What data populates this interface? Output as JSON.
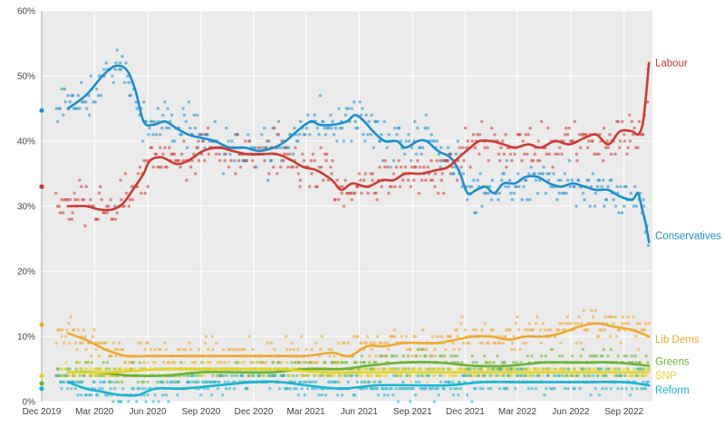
{
  "chart_data": {
    "type": "scatter",
    "title": "",
    "xlabel": "",
    "ylabel": "",
    "x_domain": [
      "2019-12-01",
      "2022-10-20"
    ],
    "ylim": [
      0,
      60
    ],
    "grid": true,
    "legend": "direct labels at right end of lines",
    "x_ticks": [
      {
        "date": "2019-12-01",
        "label": "Dec 2019"
      },
      {
        "date": "2020-03-01",
        "label": "Mar 2020"
      },
      {
        "date": "2020-06-01",
        "label": "Jun 2020"
      },
      {
        "date": "2020-09-01",
        "label": "Sep 2020"
      },
      {
        "date": "2020-12-01",
        "label": "Dec 2020"
      },
      {
        "date": "2021-03-01",
        "label": "Mar 2021"
      },
      {
        "date": "2021-06-01",
        "label": "Jun 2021"
      },
      {
        "date": "2021-09-01",
        "label": "Sep 2021"
      },
      {
        "date": "2021-12-01",
        "label": "Dec 2021"
      },
      {
        "date": "2022-03-01",
        "label": "Mar 2022"
      },
      {
        "date": "2022-06-01",
        "label": "Jun 2022"
      },
      {
        "date": "2022-09-01",
        "label": "Sep 2022"
      }
    ],
    "y_ticks": [
      {
        "value": 0,
        "label": "0%"
      },
      {
        "value": 10,
        "label": "10%"
      },
      {
        "value": 20,
        "label": "20%"
      },
      {
        "value": 30,
        "label": "30%"
      },
      {
        "value": 40,
        "label": "40%"
      },
      {
        "value": 50,
        "label": "50%"
      },
      {
        "value": 60,
        "label": "60%"
      }
    ],
    "series": [
      {
        "name": "Conservatives",
        "color": "#1a8fd0",
        "election_result": 44.7,
        "spread": 2.2,
        "label_at": 25.5,
        "trend": [
          [
            "2020-01-15",
            45
          ],
          [
            "2020-02-15",
            47
          ],
          [
            "2020-03-15",
            50
          ],
          [
            "2020-04-05",
            51.5
          ],
          [
            "2020-04-25",
            51
          ],
          [
            "2020-05-10",
            48
          ],
          [
            "2020-05-25",
            43
          ],
          [
            "2020-06-10",
            42.5
          ],
          [
            "2020-07-01",
            43
          ],
          [
            "2020-07-20",
            42
          ],
          [
            "2020-08-10",
            41
          ],
          [
            "2020-09-01",
            40.5
          ],
          [
            "2020-09-25",
            40
          ],
          [
            "2020-10-20",
            39
          ],
          [
            "2020-11-15",
            39
          ],
          [
            "2020-12-10",
            38.5
          ],
          [
            "2021-01-05",
            39
          ],
          [
            "2021-01-25",
            40
          ],
          [
            "2021-02-20",
            42
          ],
          [
            "2021-03-10",
            43
          ],
          [
            "2021-03-25",
            42.5
          ],
          [
            "2021-04-15",
            42.5
          ],
          [
            "2021-05-10",
            43
          ],
          [
            "2021-05-25",
            44
          ],
          [
            "2021-06-10",
            43
          ],
          [
            "2021-06-25",
            41.5
          ],
          [
            "2021-07-15",
            40
          ],
          [
            "2021-08-05",
            40
          ],
          [
            "2021-08-20",
            39
          ],
          [
            "2021-09-10",
            40
          ],
          [
            "2021-09-25",
            40
          ],
          [
            "2021-10-15",
            38.5
          ],
          [
            "2021-11-05",
            37.5
          ],
          [
            "2021-11-20",
            35.5
          ],
          [
            "2021-12-05",
            32
          ],
          [
            "2021-12-20",
            32.5
          ],
          [
            "2022-01-05",
            33
          ],
          [
            "2022-01-20",
            32
          ],
          [
            "2022-02-05",
            33.5
          ],
          [
            "2022-02-25",
            33.5
          ],
          [
            "2022-03-15",
            34.5
          ],
          [
            "2022-04-05",
            34.5
          ],
          [
            "2022-04-25",
            33.5
          ],
          [
            "2022-05-15",
            33
          ],
          [
            "2022-06-05",
            33.5
          ],
          [
            "2022-06-25",
            33
          ],
          [
            "2022-07-15",
            32.5
          ],
          [
            "2022-08-05",
            32.5
          ],
          [
            "2022-08-25",
            31.5
          ],
          [
            "2022-09-15",
            31
          ],
          [
            "2022-09-25",
            32
          ],
          [
            "2022-10-01",
            30
          ],
          [
            "2022-10-08",
            27.5
          ],
          [
            "2022-10-14",
            24.5
          ]
        ]
      },
      {
        "name": "Labour",
        "color": "#d03a34",
        "election_result": 33,
        "spread": 2.2,
        "label_at": 52,
        "trend": [
          [
            "2020-01-15",
            30
          ],
          [
            "2020-02-15",
            30
          ],
          [
            "2020-03-10",
            29.5
          ],
          [
            "2020-04-01",
            29.5
          ],
          [
            "2020-04-20",
            30.5
          ],
          [
            "2020-05-10",
            33
          ],
          [
            "2020-05-25",
            35
          ],
          [
            "2020-06-05",
            37
          ],
          [
            "2020-06-25",
            37.5
          ],
          [
            "2020-07-20",
            36.5
          ],
          [
            "2020-08-10",
            37
          ],
          [
            "2020-09-05",
            38.5
          ],
          [
            "2020-10-01",
            39
          ],
          [
            "2020-10-25",
            38.5
          ],
          [
            "2020-11-20",
            38
          ],
          [
            "2020-12-15",
            38
          ],
          [
            "2021-01-10",
            38
          ],
          [
            "2021-02-05",
            37
          ],
          [
            "2021-02-25",
            36
          ],
          [
            "2021-03-20",
            35.5
          ],
          [
            "2021-04-15",
            34
          ],
          [
            "2021-05-01",
            32.5
          ],
          [
            "2021-05-20",
            33.5
          ],
          [
            "2021-06-15",
            33
          ],
          [
            "2021-07-10",
            34
          ],
          [
            "2021-07-30",
            34
          ],
          [
            "2021-08-20",
            35
          ],
          [
            "2021-09-15",
            35
          ],
          [
            "2021-10-10",
            35.5
          ],
          [
            "2021-11-01",
            36
          ],
          [
            "2021-11-20",
            37.5
          ],
          [
            "2021-12-10",
            39
          ],
          [
            "2021-12-25",
            40
          ],
          [
            "2022-01-15",
            40
          ],
          [
            "2022-02-05",
            39.5
          ],
          [
            "2022-02-25",
            39
          ],
          [
            "2022-03-20",
            39.5
          ],
          [
            "2022-04-10",
            39
          ],
          [
            "2022-05-05",
            40
          ],
          [
            "2022-05-30",
            39.5
          ],
          [
            "2022-06-25",
            40.5
          ],
          [
            "2022-07-15",
            41
          ],
          [
            "2022-08-05",
            39.5
          ],
          [
            "2022-08-25",
            41.5
          ],
          [
            "2022-09-15",
            41.5
          ],
          [
            "2022-09-25",
            41
          ],
          [
            "2022-10-03",
            42.5
          ],
          [
            "2022-10-09",
            47
          ],
          [
            "2022-10-14",
            52
          ]
        ]
      },
      {
        "name": "Lib Dems",
        "color": "#f0a830",
        "election_result": 11.8,
        "spread": 1.8,
        "label_at": 9.6,
        "trend": [
          [
            "2020-01-15",
            10.5
          ],
          [
            "2020-02-15",
            9.5
          ],
          [
            "2020-03-20",
            8
          ],
          [
            "2020-04-25",
            7
          ],
          [
            "2020-06-01",
            7
          ],
          [
            "2020-07-15",
            7
          ],
          [
            "2020-09-01",
            7
          ],
          [
            "2020-10-15",
            7
          ],
          [
            "2020-12-01",
            7
          ],
          [
            "2021-01-15",
            7
          ],
          [
            "2021-03-01",
            7
          ],
          [
            "2021-04-15",
            7.5
          ],
          [
            "2021-05-15",
            7
          ],
          [
            "2021-06-15",
            8.5
          ],
          [
            "2021-07-15",
            8.5
          ],
          [
            "2021-08-15",
            9
          ],
          [
            "2021-09-15",
            9
          ],
          [
            "2021-10-15",
            9
          ],
          [
            "2021-11-15",
            9.5
          ],
          [
            "2021-12-15",
            10
          ],
          [
            "2022-01-15",
            10
          ],
          [
            "2022-02-15",
            9.5
          ],
          [
            "2022-03-15",
            10
          ],
          [
            "2022-04-15",
            10
          ],
          [
            "2022-05-15",
            10.5
          ],
          [
            "2022-06-15",
            11.5
          ],
          [
            "2022-07-15",
            12
          ],
          [
            "2022-08-15",
            11.5
          ],
          [
            "2022-09-15",
            11
          ],
          [
            "2022-10-14",
            10
          ]
        ]
      },
      {
        "name": "Greens",
        "color": "#6ab534",
        "election_result": 2.8,
        "spread": 1.2,
        "label_at": 6.2,
        "trend": [
          [
            "2020-01-15",
            4.5
          ],
          [
            "2020-03-01",
            4.5
          ],
          [
            "2020-05-01",
            4
          ],
          [
            "2020-07-01",
            4
          ],
          [
            "2020-09-01",
            4.5
          ],
          [
            "2020-11-01",
            4.5
          ],
          [
            "2021-01-01",
            4.5
          ],
          [
            "2021-03-01",
            5
          ],
          [
            "2021-05-01",
            5
          ],
          [
            "2021-06-15",
            5.5
          ],
          [
            "2021-08-15",
            6
          ],
          [
            "2021-10-15",
            6
          ],
          [
            "2021-12-15",
            5.5
          ],
          [
            "2022-02-15",
            5.5
          ],
          [
            "2022-04-15",
            6
          ],
          [
            "2022-06-15",
            6
          ],
          [
            "2022-08-15",
            6
          ],
          [
            "2022-10-14",
            5.5
          ]
        ]
      },
      {
        "name": "SNP",
        "color": "#e5d22a",
        "election_result": 4,
        "spread": 0.8,
        "label_at": 4,
        "trend": [
          [
            "2020-01-15",
            4.5
          ],
          [
            "2020-04-01",
            4.5
          ],
          [
            "2020-07-01",
            5
          ],
          [
            "2020-10-01",
            5
          ],
          [
            "2021-01-01",
            5
          ],
          [
            "2021-04-01",
            4.5
          ],
          [
            "2021-07-01",
            4.5
          ],
          [
            "2021-10-01",
            4.5
          ],
          [
            "2022-01-01",
            4.5
          ],
          [
            "2022-04-01",
            4.5
          ],
          [
            "2022-07-01",
            4.5
          ],
          [
            "2022-10-14",
            4.5
          ]
        ]
      },
      {
        "name": "Reform",
        "color": "#1ab4d4",
        "election_result": 2,
        "spread": 1.3,
        "label_at": 1.8,
        "trend": [
          [
            "2020-01-15",
            3
          ],
          [
            "2020-02-15",
            2
          ],
          [
            "2020-03-15",
            1.5
          ],
          [
            "2020-04-15",
            1
          ],
          [
            "2020-05-15",
            1
          ],
          [
            "2020-06-15",
            2
          ],
          [
            "2020-08-01",
            2
          ],
          [
            "2020-10-01",
            2.5
          ],
          [
            "2020-12-01",
            3
          ],
          [
            "2021-01-15",
            3
          ],
          [
            "2021-03-01",
            2.5
          ],
          [
            "2021-05-01",
            2
          ],
          [
            "2021-07-01",
            2.5
          ],
          [
            "2021-09-01",
            2.5
          ],
          [
            "2021-11-01",
            2.5
          ],
          [
            "2022-01-01",
            3
          ],
          [
            "2022-03-01",
            3
          ],
          [
            "2022-05-01",
            3
          ],
          [
            "2022-07-01",
            3
          ],
          [
            "2022-09-01",
            3
          ],
          [
            "2022-10-14",
            2.5
          ]
        ]
      }
    ]
  }
}
